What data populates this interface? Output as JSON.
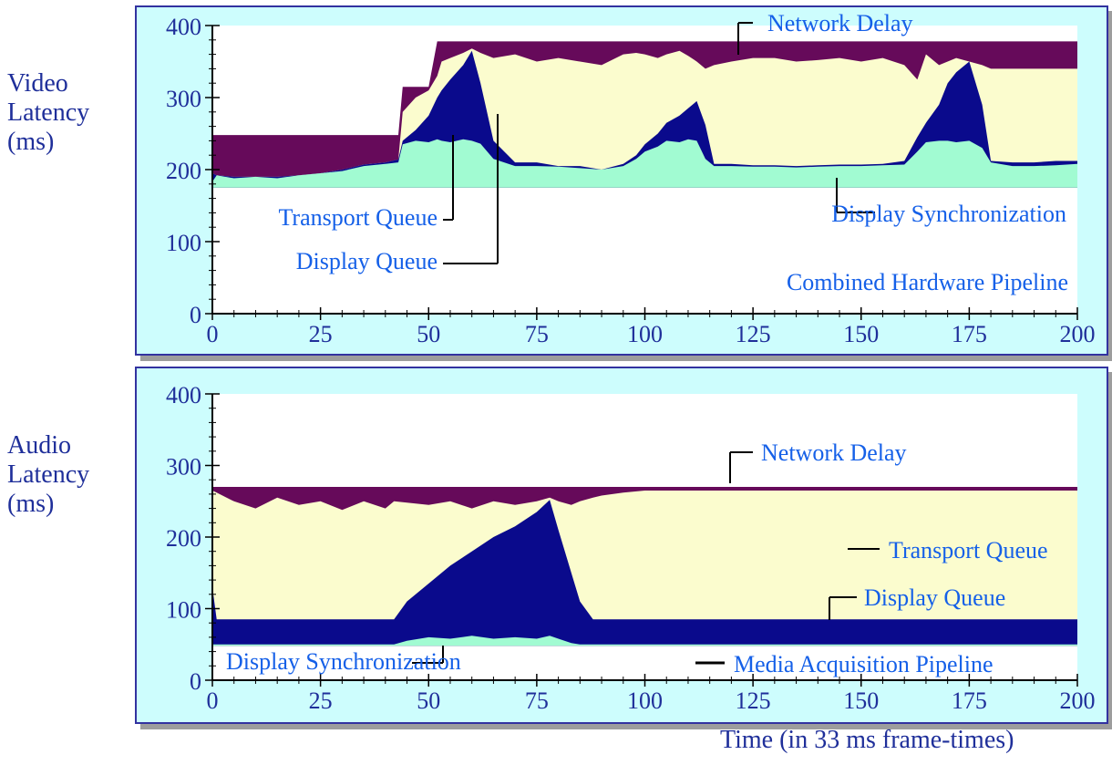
{
  "x_title": "Time (in 33 ms frame-times)",
  "colors": {
    "panel_bg": "#cdfdfd",
    "plot_bg": "#ffffff",
    "display_sync": "#660a5a",
    "display_queue": "#fbfcce",
    "transport_queue": "#0a0a8c",
    "network_delay": "#a1fbd2",
    "label_blue": "#1560e8",
    "axis_text": "#1f2f9a"
  },
  "chart_data": [
    {
      "type": "area",
      "ylabel": "Video\nLatency\n(ms)",
      "panel_label": "Combined Hardware Pipeline",
      "xlim": [
        0,
        200
      ],
      "ylim": [
        0,
        400
      ],
      "xticks": [
        "0",
        "25",
        "50",
        "75",
        "100",
        "125",
        "150",
        "175",
        "200"
      ],
      "yticks": [
        "0",
        "100",
        "200",
        "300",
        "400"
      ],
      "grid": false,
      "x": [
        0,
        1,
        5,
        10,
        15,
        20,
        25,
        30,
        35,
        40,
        43,
        44,
        47,
        50,
        52,
        53,
        55,
        58,
        60,
        62,
        65,
        70,
        75,
        80,
        85,
        90,
        95,
        98,
        100,
        103,
        105,
        108,
        110,
        112,
        114,
        116,
        120,
        125,
        130,
        135,
        140,
        145,
        150,
        155,
        160,
        163,
        165,
        168,
        170,
        172,
        175,
        178,
        180,
        185,
        190,
        195,
        200
      ],
      "series": [
        {
          "name": "Network Delay",
          "values": [
            183,
            192,
            188,
            190,
            188,
            192,
            195,
            198,
            205,
            208,
            210,
            235,
            240,
            238,
            242,
            240,
            238,
            242,
            240,
            236,
            215,
            205,
            205,
            204,
            202,
            200,
            205,
            215,
            225,
            232,
            240,
            238,
            242,
            240,
            215,
            205,
            205,
            204,
            204,
            203,
            204,
            205,
            205,
            206,
            207,
            225,
            238,
            240,
            240,
            238,
            240,
            230,
            210,
            205,
            205,
            206,
            208
          ]
        },
        {
          "name": "Transport Queue",
          "values": [
            195,
            192,
            190,
            190,
            190,
            192,
            195,
            200,
            207,
            210,
            214,
            240,
            255,
            275,
            300,
            310,
            325,
            345,
            365,
            320,
            240,
            210,
            210,
            205,
            205,
            200,
            208,
            220,
            235,
            250,
            265,
            275,
            285,
            295,
            262,
            208,
            208,
            206,
            206,
            205,
            206,
            207,
            207,
            208,
            212,
            245,
            265,
            290,
            320,
            335,
            350,
            290,
            212,
            210,
            210,
            212,
            212
          ]
        },
        {
          "name": "Display Queue",
          "values": [
            195,
            192,
            190,
            190,
            190,
            192,
            195,
            200,
            207,
            210,
            214,
            280,
            300,
            310,
            330,
            350,
            355,
            362,
            368,
            362,
            355,
            360,
            350,
            355,
            350,
            345,
            360,
            362,
            360,
            355,
            360,
            365,
            358,
            350,
            340,
            345,
            350,
            355,
            355,
            350,
            352,
            355,
            350,
            355,
            345,
            325,
            360,
            345,
            350,
            355,
            350,
            345,
            340,
            340,
            340,
            340,
            340
          ]
        },
        {
          "name": "Display Synchronization",
          "values": [
            248,
            248,
            248,
            248,
            248,
            248,
            248,
            248,
            248,
            248,
            248,
            315,
            315,
            315,
            378,
            378,
            378,
            378,
            378,
            378,
            378,
            378,
            378,
            378,
            378,
            378,
            378,
            378,
            378,
            378,
            378,
            378,
            378,
            378,
            378,
            378,
            378,
            378,
            378,
            378,
            378,
            378,
            378,
            378,
            378,
            378,
            378,
            378,
            378,
            378,
            378,
            378,
            378,
            378,
            378,
            378,
            378
          ]
        }
      ],
      "annotations": [
        "Display Synchronization",
        "Transport Queue",
        "Display Queue",
        "Network Delay"
      ]
    },
    {
      "type": "area",
      "ylabel": "Audio\nLatency\n(ms)",
      "panel_label": "Media Acquisition Pipeline",
      "xlim": [
        0,
        200
      ],
      "ylim": [
        0,
        400
      ],
      "xticks": [
        "0",
        "25",
        "50",
        "75",
        "100",
        "125",
        "150",
        "175",
        "200"
      ],
      "yticks": [
        "0",
        "100",
        "200",
        "300",
        "400"
      ],
      "grid": false,
      "x": [
        0,
        1,
        5,
        10,
        15,
        20,
        25,
        30,
        35,
        40,
        42,
        45,
        50,
        55,
        60,
        65,
        70,
        75,
        78,
        80,
        83,
        85,
        88,
        90,
        95,
        100,
        110,
        120,
        130,
        140,
        150,
        160,
        170,
        180,
        190,
        200
      ],
      "series": [
        {
          "name": "Network Delay",
          "values": [
            50,
            50,
            50,
            50,
            50,
            50,
            50,
            50,
            50,
            50,
            50,
            55,
            60,
            58,
            62,
            58,
            60,
            58,
            62,
            58,
            52,
            50,
            50,
            50,
            50,
            50,
            50,
            50,
            50,
            50,
            50,
            50,
            50,
            50,
            50,
            50
          ]
        },
        {
          "name": "Transport Queue",
          "values": [
            130,
            85,
            85,
            85,
            85,
            85,
            85,
            85,
            85,
            85,
            85,
            110,
            135,
            160,
            180,
            200,
            215,
            235,
            252,
            210,
            150,
            110,
            85,
            85,
            85,
            85,
            85,
            85,
            85,
            85,
            85,
            85,
            85,
            85,
            85,
            85
          ]
        },
        {
          "name": "Display Queue",
          "values": [
            265,
            262,
            250,
            240,
            255,
            245,
            250,
            238,
            250,
            240,
            250,
            248,
            245,
            250,
            240,
            250,
            245,
            250,
            255,
            250,
            245,
            250,
            255,
            258,
            262,
            265,
            265,
            265,
            265,
            265,
            265,
            265,
            265,
            265,
            265,
            265
          ]
        },
        {
          "name": "Display Synchronization",
          "values": [
            270,
            270,
            270,
            270,
            270,
            270,
            270,
            270,
            270,
            270,
            270,
            270,
            270,
            270,
            270,
            270,
            270,
            270,
            270,
            270,
            270,
            270,
            270,
            270,
            270,
            270,
            270,
            270,
            270,
            270,
            270,
            270,
            270,
            270,
            270,
            270
          ]
        }
      ],
      "annotations": [
        "Display Synchronization",
        "Display Queue",
        "Transport Queue",
        "Network Delay"
      ]
    }
  ]
}
